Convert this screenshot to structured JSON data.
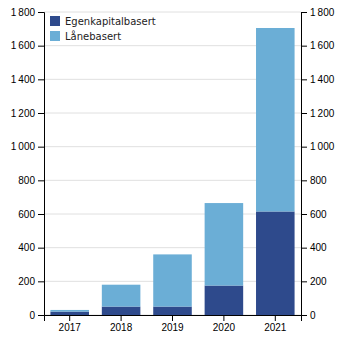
{
  "chart_data": {
    "type": "bar",
    "stacked": true,
    "categories": [
      "2017",
      "2018",
      "2019",
      "2020",
      "2021"
    ],
    "series": [
      {
        "name": "Egenkapitalbasert",
        "color": "#2E4A8C",
        "values": [
          20,
          50,
          50,
          175,
          615
        ]
      },
      {
        "name": "Lånebasert",
        "color": "#6BAED6",
        "values": [
          10,
          130,
          310,
          490,
          1090
        ]
      }
    ],
    "ylim": [
      0,
      1800
    ],
    "yticks": [
      0,
      200,
      400,
      600,
      800,
      {
        "value": 1000,
        "label": "1 000"
      },
      {
        "value": 1200,
        "label": "1 200"
      },
      {
        "value": 1400,
        "label": "1 400"
      },
      {
        "value": 1600,
        "label": "1 600"
      },
      {
        "value": 1800,
        "label": "1 800"
      }
    ],
    "y2lim": [
      0,
      1800
    ],
    "y2ticks": [
      0,
      200,
      400,
      600,
      800,
      {
        "value": 1000,
        "label": "1 000"
      },
      {
        "value": 1200,
        "label": "1 200"
      },
      {
        "value": 1400,
        "label": "1 400"
      },
      {
        "value": 1600,
        "label": "1 600"
      },
      {
        "value": 1800,
        "label": "1 800"
      }
    ],
    "grid": true,
    "legend": "upper left"
  }
}
